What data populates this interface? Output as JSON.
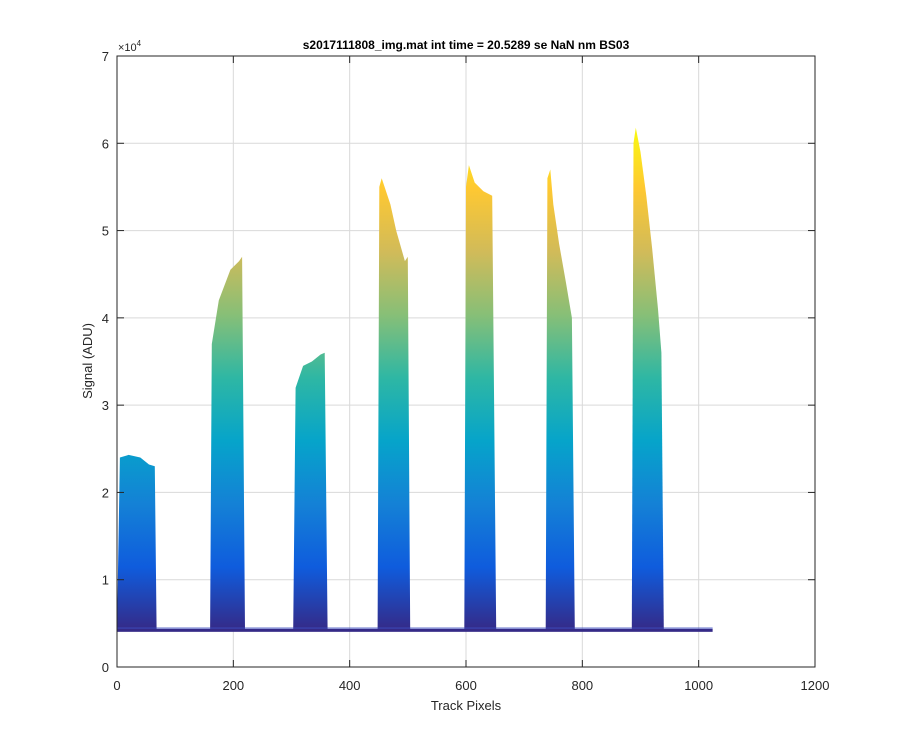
{
  "chart_data": {
    "type": "area",
    "title": "s2017111808_img.mat int time = 20.5289 se  NaN nm BS03",
    "xlabel": "Track Pixels",
    "ylabel": "Signal (ADU)",
    "xlim": [
      0,
      1200
    ],
    "ylim": [
      0,
      70000
    ],
    "x_ticks": [
      0,
      200,
      400,
      600,
      800,
      1000,
      1200
    ],
    "y_ticks": [
      0,
      1,
      2,
      3,
      4,
      5,
      6,
      7
    ],
    "y_exponent_label": "×10",
    "y_exponent_power": "4",
    "grid": true,
    "colormap": [
      "#352a87",
      "#0f5cdd",
      "#1481d6",
      "#06a4ca",
      "#2eb7a4",
      "#87bf77",
      "#d1bb59",
      "#fec832",
      "#f9fb0e"
    ],
    "baseline": 4200,
    "baseline_x_range": [
      0,
      1024
    ],
    "peaks": [
      {
        "x_start": 0,
        "x_end": 68,
        "x": [
          0,
          5,
          20,
          40,
          55,
          65,
          68
        ],
        "y": [
          4200,
          24000,
          24300,
          24000,
          23200,
          23000,
          4200
        ]
      },
      {
        "x_start": 160,
        "x_end": 220,
        "x": [
          160,
          163,
          175,
          195,
          210,
          215,
          220
        ],
        "y": [
          4200,
          37000,
          42000,
          45500,
          46500,
          47000,
          4200
        ]
      },
      {
        "x_start": 303,
        "x_end": 362,
        "x": [
          303,
          307,
          320,
          335,
          350,
          357,
          362
        ],
        "y": [
          4200,
          32000,
          34500,
          35000,
          35800,
          36000,
          4200
        ]
      },
      {
        "x_start": 448,
        "x_end": 504,
        "x": [
          448,
          451,
          455,
          470,
          480,
          495,
          500,
          504
        ],
        "y": [
          4200,
          55000,
          56000,
          53000,
          50000,
          46500,
          47000,
          4200
        ]
      },
      {
        "x_start": 597,
        "x_end": 652,
        "x": [
          597,
          600,
          605,
          615,
          630,
          645,
          652
        ],
        "y": [
          4200,
          55000,
          57500,
          55500,
          54500,
          54000,
          4200
        ]
      },
      {
        "x_start": 737,
        "x_end": 787,
        "x": [
          737,
          740,
          745,
          750,
          760,
          772,
          782,
          787
        ],
        "y": [
          4200,
          56000,
          57000,
          53000,
          48500,
          44000,
          40000,
          4200
        ]
      },
      {
        "x_start": 885,
        "x_end": 940,
        "x": [
          885,
          888,
          892,
          900,
          910,
          920,
          930,
          936,
          940
        ],
        "y": [
          4200,
          60000,
          61800,
          59000,
          54000,
          48000,
          41000,
          36000,
          4200
        ]
      }
    ]
  }
}
